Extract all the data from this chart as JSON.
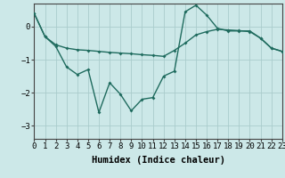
{
  "x": [
    0,
    1,
    2,
    3,
    4,
    5,
    6,
    7,
    8,
    9,
    10,
    11,
    12,
    13,
    14,
    15,
    16,
    17,
    18,
    19,
    20,
    21,
    22,
    23
  ],
  "line1_y": [
    0.4,
    -0.3,
    -0.55,
    -0.65,
    -0.7,
    -0.72,
    -0.75,
    -0.78,
    -0.8,
    -0.82,
    -0.85,
    -0.87,
    -0.9,
    -0.72,
    -0.5,
    -0.25,
    -0.15,
    -0.08,
    -0.1,
    -0.12,
    -0.15,
    -0.35,
    -0.65,
    -0.75
  ],
  "line2_y": [
    0.4,
    -0.3,
    -0.6,
    -1.22,
    -1.45,
    -1.3,
    -2.6,
    -1.7,
    -2.05,
    -2.55,
    -2.2,
    -2.15,
    -1.5,
    -1.35,
    0.45,
    0.65,
    0.35,
    -0.05,
    -0.13,
    -0.13,
    -0.13,
    -0.35,
    -0.65,
    -0.75
  ],
  "background_color": "#cce8e8",
  "grid_color": "#aacccc",
  "line_color": "#1f6b5e",
  "xlim": [
    0,
    23
  ],
  "ylim": [
    -3.4,
    0.7
  ],
  "yticks": [
    0,
    -1,
    -2,
    -3
  ],
  "xlabel": "Humidex (Indice chaleur)",
  "xlabel_fontsize": 7.5,
  "tick_fontsize": 6.5,
  "line_width": 1.0,
  "marker": "D",
  "marker_size": 2.0
}
